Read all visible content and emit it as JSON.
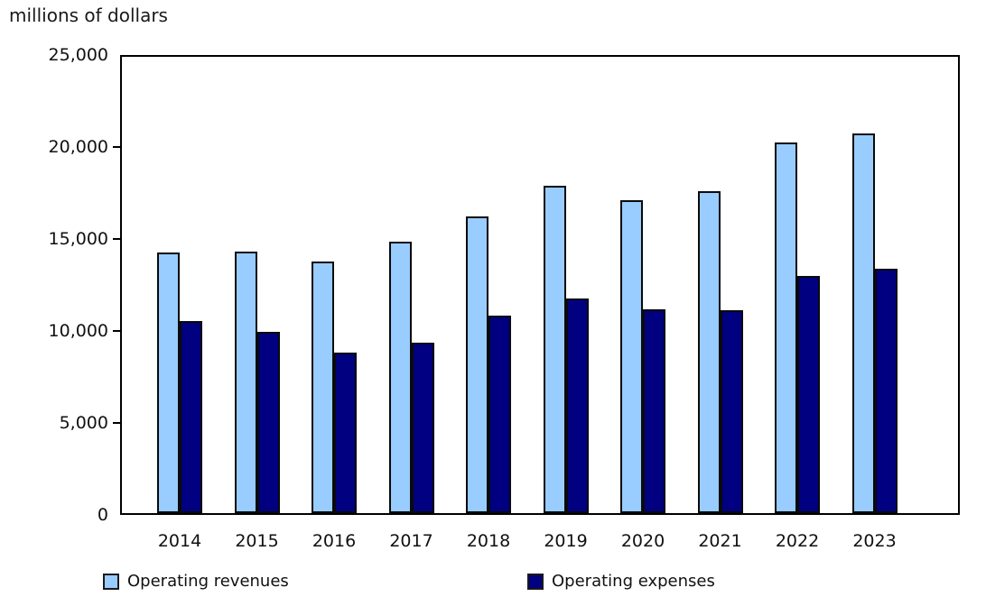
{
  "title": "millions of dollars",
  "colors": {
    "revenues": "#99CCFF",
    "expenses": "#000080",
    "bar_border": "#0a0a0a",
    "frame": "#000000",
    "text": "#111111",
    "background": "#ffffff"
  },
  "legend": [
    {
      "label": "Operating revenues",
      "color_key": "revenues"
    },
    {
      "label": "Operating expenses",
      "color_key": "expenses"
    }
  ],
  "chart_data": {
    "type": "bar",
    "title": "millions of dollars",
    "ylabel": "millions of dollars",
    "xlabel": "",
    "categories": [
      "2014",
      "2015",
      "2016",
      "2017",
      "2018",
      "2019",
      "2020",
      "2021",
      "2022",
      "2023"
    ],
    "series": [
      {
        "name": "Operating revenues",
        "color": "#99CCFF",
        "values": [
          14300,
          14350,
          13800,
          14850,
          16250,
          17950,
          17150,
          17650,
          20300,
          20800
        ]
      },
      {
        "name": "Operating expenses",
        "color": "#000080",
        "values": [
          10500,
          9950,
          8800,
          9350,
          10800,
          11750,
          11150,
          11100,
          13000,
          13400
        ]
      }
    ],
    "ylim": [
      0,
      25000
    ],
    "yticks": [
      0,
      5000,
      10000,
      15000,
      20000,
      25000
    ],
    "ytick_labels": [
      "0",
      "5,000",
      "10,000",
      "15,000",
      "20,000",
      "25,000"
    ],
    "grid": false,
    "legend_position": "bottom"
  }
}
